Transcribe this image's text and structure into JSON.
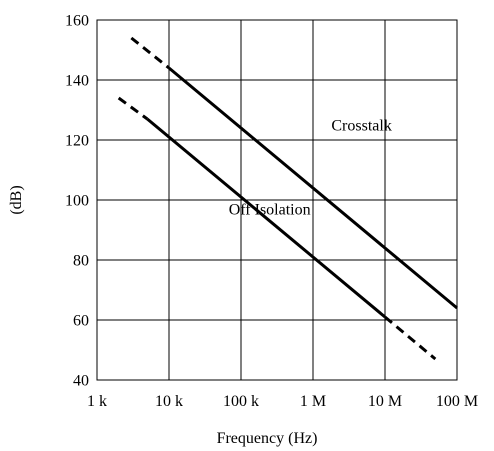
{
  "chart_data": {
    "type": "line",
    "title": "",
    "xlabel": "Frequency (Hz)",
    "ylabel": "(dB)",
    "x_scale": "log",
    "xlim": [
      1000,
      100000000
    ],
    "ylim": [
      40,
      160
    ],
    "x_ticks": [
      {
        "value": 1000,
        "label": "1 k"
      },
      {
        "value": 10000,
        "label": "10 k"
      },
      {
        "value": 100000,
        "label": "100 k"
      },
      {
        "value": 1000000,
        "label": "1 M"
      },
      {
        "value": 10000000,
        "label": "10 M"
      },
      {
        "value": 100000000,
        "label": "100 M"
      }
    ],
    "y_ticks": [
      {
        "value": 40,
        "label": "40"
      },
      {
        "value": 60,
        "label": "60"
      },
      {
        "value": 80,
        "label": "80"
      },
      {
        "value": 100,
        "label": "100"
      },
      {
        "value": 120,
        "label": "120"
      },
      {
        "value": 140,
        "label": "140"
      },
      {
        "value": 160,
        "label": "160"
      }
    ],
    "grid": true,
    "series": [
      {
        "name": "Crosstalk",
        "segments": [
          {
            "style": "dashed",
            "x": [
              3000,
              10000
            ],
            "y": [
              154,
              144
            ]
          },
          {
            "style": "solid",
            "x": [
              10000,
              100000000
            ],
            "y": [
              144,
              64
            ]
          }
        ]
      },
      {
        "name": "Off Isolation",
        "segments": [
          {
            "style": "solid",
            "x": [
              5000,
              10000000
            ],
            "y": [
              127,
              61
            ]
          },
          {
            "style": "dashed",
            "x": [
              2000,
              5000
            ],
            "y": [
              134,
              127
            ]
          },
          {
            "style": "dashed",
            "x": [
              10000000,
              50000000
            ],
            "y": [
              61,
              47
            ]
          }
        ]
      }
    ],
    "annotations": [
      {
        "text": "Crosstalk",
        "x": 1800000,
        "y": 125,
        "anchor": "start"
      },
      {
        "text": "Off Isolation",
        "x": 250000,
        "y": 97,
        "anchor": "middle"
      }
    ],
    "colors": {
      "line": "#000000",
      "grid": "#000000",
      "background": "#ffffff"
    }
  }
}
